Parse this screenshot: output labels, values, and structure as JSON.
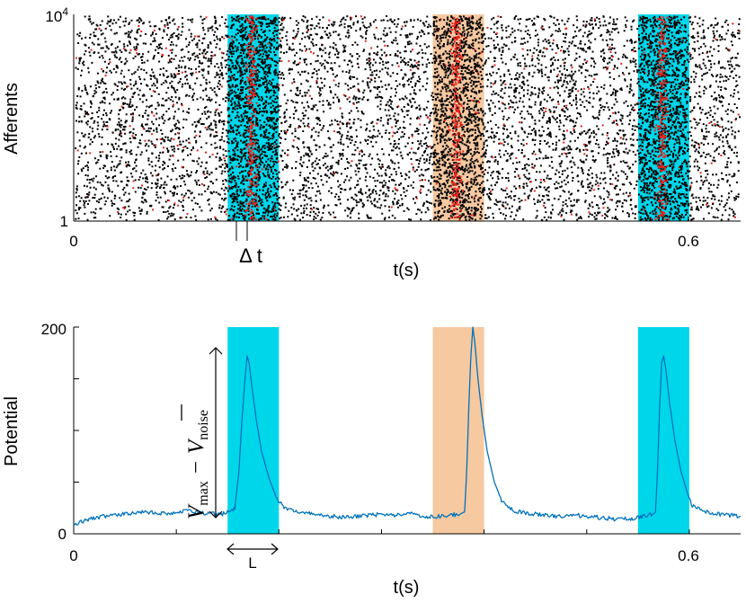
{
  "chart_data": [
    {
      "type": "scatter",
      "subtype": "raster",
      "title": "",
      "xlabel": "t(s)",
      "ylabel": "Afferents",
      "xlim": [
        0,
        0.65
      ],
      "ylim": [
        1,
        10000
      ],
      "xticks": [
        {
          "value": 0,
          "label": "0"
        },
        {
          "value": 0.6,
          "label": "0.6"
        }
      ],
      "yticks": [
        {
          "value": 1,
          "label": "1"
        },
        {
          "value": 10000,
          "label_base": "10",
          "label_exp": "4"
        }
      ],
      "bands": [
        {
          "name": "pattern-1",
          "start": 0.15,
          "end": 0.2,
          "color": "#00d6ea"
        },
        {
          "name": "pattern-2",
          "start": 0.35,
          "end": 0.4,
          "color": "#f6c9a0"
        },
        {
          "name": "pattern-3",
          "start": 0.55,
          "end": 0.6,
          "color": "#00d6ea"
        }
      ],
      "series": [
        {
          "name": "background spikes",
          "color": "#000000"
        },
        {
          "name": "pattern spikes",
          "color": "#e8241c"
        }
      ],
      "annotations": [
        {
          "text": "Δ t",
          "x_start": 0.1585,
          "x_end": 0.1697
        }
      ]
    },
    {
      "type": "line",
      "title": "",
      "xlabel": "t(s)",
      "ylabel": "Potential",
      "xlim": [
        0,
        0.65
      ],
      "ylim": [
        0,
        200
      ],
      "xticks": [
        {
          "value": 0,
          "label": "0"
        },
        {
          "value": 0.6,
          "label": "0.6"
        }
      ],
      "yticks": [
        {
          "value": 0,
          "label": "0"
        },
        {
          "value": 200,
          "label": "200"
        }
      ],
      "bands": [
        {
          "name": "pattern-1",
          "start": 0.15,
          "end": 0.2,
          "color": "#00d6ea"
        },
        {
          "name": "pattern-2",
          "start": 0.35,
          "end": 0.4,
          "color": "#f6c9a0"
        },
        {
          "name": "pattern-3",
          "start": 0.55,
          "end": 0.6,
          "color": "#00d6ea"
        }
      ],
      "series": [
        {
          "name": "potential",
          "color": "#0072bd",
          "points": [
            [
              0.0,
              8
            ],
            [
              0.008,
              12
            ],
            [
              0.015,
              14
            ],
            [
              0.03,
              17
            ],
            [
              0.05,
              19
            ],
            [
              0.07,
              21
            ],
            [
              0.09,
              20
            ],
            [
              0.11,
              22
            ],
            [
              0.13,
              20
            ],
            [
              0.145,
              19
            ],
            [
              0.152,
              23
            ],
            [
              0.157,
              24
            ],
            [
              0.161,
              60
            ],
            [
              0.164,
              110
            ],
            [
              0.167,
              150
            ],
            [
              0.169,
              172
            ],
            [
              0.171,
              165
            ],
            [
              0.174,
              140
            ],
            [
              0.178,
              110
            ],
            [
              0.183,
              80
            ],
            [
              0.19,
              55
            ],
            [
              0.197,
              36
            ],
            [
              0.205,
              25
            ],
            [
              0.22,
              21
            ],
            [
              0.24,
              18
            ],
            [
              0.26,
              16
            ],
            [
              0.28,
              17
            ],
            [
              0.3,
              19
            ],
            [
              0.32,
              18
            ],
            [
              0.33,
              20
            ],
            [
              0.345,
              16
            ],
            [
              0.36,
              17
            ],
            [
              0.375,
              19
            ],
            [
              0.381,
              21
            ],
            [
              0.383,
              60
            ],
            [
              0.385,
              120
            ],
            [
              0.387,
              170
            ],
            [
              0.389,
              200
            ],
            [
              0.391,
              185
            ],
            [
              0.394,
              150
            ],
            [
              0.398,
              115
            ],
            [
              0.403,
              80
            ],
            [
              0.41,
              50
            ],
            [
              0.418,
              30
            ],
            [
              0.43,
              22
            ],
            [
              0.45,
              19
            ],
            [
              0.47,
              17
            ],
            [
              0.49,
              18
            ],
            [
              0.51,
              16
            ],
            [
              0.53,
              14
            ],
            [
              0.545,
              15
            ],
            [
              0.56,
              18
            ],
            [
              0.567,
              20
            ],
            [
              0.569,
              60
            ],
            [
              0.571,
              120
            ],
            [
              0.573,
              165
            ],
            [
              0.575,
              172
            ],
            [
              0.577,
              160
            ],
            [
              0.581,
              125
            ],
            [
              0.586,
              90
            ],
            [
              0.592,
              60
            ],
            [
              0.598,
              40
            ],
            [
              0.603,
              27
            ],
            [
              0.615,
              21
            ],
            [
              0.63,
              19
            ],
            [
              0.65,
              17
            ]
          ]
        }
      ],
      "annotations": [
        {
          "text_main": "V",
          "text_sub1": "max",
          "text_minus": "−",
          "text_sub2": "noise",
          "from_y": 20,
          "to_y": 183
        },
        {
          "text": "L",
          "x_start": 0.15,
          "x_end": 0.2
        }
      ]
    }
  ]
}
